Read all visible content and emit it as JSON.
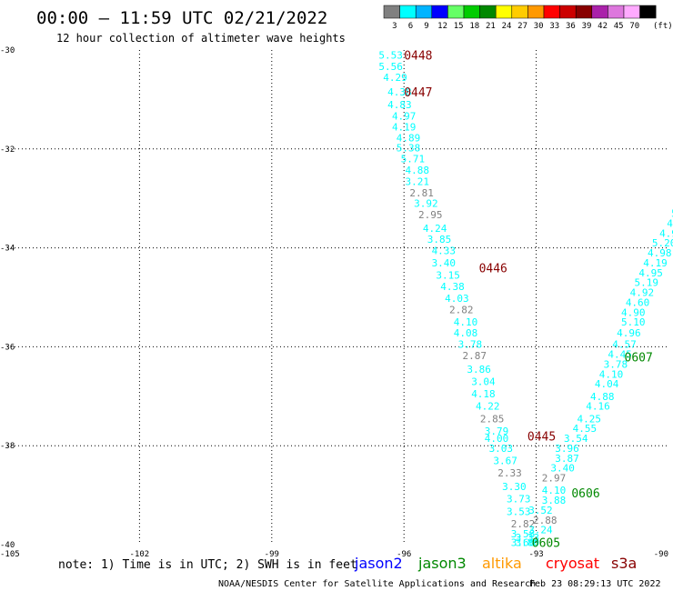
{
  "header": {
    "title": "00:00 – 11:59 UTC 02/21/2022",
    "subtitle": "12 hour collection of altimeter wave heights"
  },
  "legend": {
    "unit": "(ft)",
    "bins": [
      {
        "label": "3",
        "color": "#808080"
      },
      {
        "label": "6",
        "color": "#00ffff"
      },
      {
        "label": "9",
        "color": "#00b4ff"
      },
      {
        "label": "12",
        "color": "#0000ff"
      },
      {
        "label": "15",
        "color": "#66ff66"
      },
      {
        "label": "18",
        "color": "#00cc00"
      },
      {
        "label": "21",
        "color": "#008800"
      },
      {
        "label": "24",
        "color": "#ffff00"
      },
      {
        "label": "27",
        "color": "#ffcc00"
      },
      {
        "label": "30",
        "color": "#ff9900"
      },
      {
        "label": "33",
        "color": "#ff0000"
      },
      {
        "label": "36",
        "color": "#cc0000"
      },
      {
        "label": "39",
        "color": "#880000"
      },
      {
        "label": "42",
        "color": "#aa22aa"
      },
      {
        "label": "45",
        "color": "#dd77dd"
      },
      {
        "label": "70",
        "color": "#ffaaff"
      },
      {
        "label": "",
        "color": "#000000"
      }
    ]
  },
  "footer": {
    "note": "note:  1) Time is in UTC;  2) SWH is in feet",
    "satellites": [
      {
        "name": "jason2",
        "color": "#0000ff"
      },
      {
        "name": "jason3",
        "color": "#008800"
      },
      {
        "name": "altika",
        "color": "#ff9900"
      },
      {
        "name": "cryosat",
        "color": "#ff0000"
      },
      {
        "name": "s3a",
        "color": "#880000"
      }
    ],
    "credit": "NOAA/NESDIS Center for Satellite Applications and Research",
    "timestamp": "Feb 23 08:29:13 UTC 2022"
  },
  "chart_data": {
    "type": "scatter",
    "title": "00:00 – 11:59 UTC 02/21/2022",
    "subtitle": "12 hour collection of altimeter wave heights",
    "xlim": [
      -105,
      -90
    ],
    "ylim": [
      -40,
      -30
    ],
    "x_ticks": [
      {
        "value": -105,
        "label": "-105"
      },
      {
        "value": -102,
        "label": "-102"
      },
      {
        "value": -99,
        "label": "-99"
      },
      {
        "value": -96,
        "label": "-96"
      },
      {
        "value": -93,
        "label": "-93"
      },
      {
        "value": -90,
        "label": "-90"
      }
    ],
    "y_ticks": [
      {
        "value": -30,
        "label": "-30"
      },
      {
        "value": -32,
        "label": "-32"
      },
      {
        "value": -34,
        "label": "-34"
      },
      {
        "value": -36,
        "label": "-36"
      },
      {
        "value": -38,
        "label": "-38"
      },
      {
        "value": -40,
        "label": "-40"
      }
    ],
    "grid": true,
    "series": [
      {
        "name": "s3a",
        "points": [
          [
            -96.3,
            -30.1,
            "5.53",
            "#00ffff"
          ],
          [
            -96.3,
            -30.33,
            "5.56",
            "#00ffff"
          ],
          [
            -96.2,
            -30.55,
            "4.29",
            "#00ffff"
          ],
          [
            -96.1,
            -30.85,
            "4.38",
            "#00ffff"
          ],
          [
            -96.1,
            -31.1,
            "4.83",
            "#00ffff"
          ],
          [
            -96.0,
            -31.33,
            "4.97",
            "#00ffff"
          ],
          [
            -96.0,
            -31.55,
            "4.19",
            "#00ffff"
          ],
          [
            -95.9,
            -31.77,
            "4.89",
            "#00ffff"
          ],
          [
            -95.9,
            -31.98,
            "5.38",
            "#00ffff"
          ],
          [
            -95.8,
            -32.2,
            "5.71",
            "#00ffff"
          ],
          [
            -95.7,
            -32.43,
            "4.88",
            "#00ffff"
          ],
          [
            -95.7,
            -32.66,
            "3.21",
            "#00ffff"
          ],
          [
            -95.6,
            -32.89,
            "2.81",
            "#808080"
          ],
          [
            -95.5,
            -33.1,
            "3.92",
            "#00ffff"
          ],
          [
            -95.4,
            -33.33,
            "2.95",
            "#808080"
          ],
          [
            -95.3,
            -33.6,
            "4.24",
            "#00ffff"
          ],
          [
            -95.2,
            -33.82,
            "3.85",
            "#00ffff"
          ],
          [
            -95.1,
            -34.05,
            "4.33",
            "#00ffff"
          ],
          [
            -95.1,
            -34.3,
            "3.40",
            "#00ffff"
          ],
          [
            -95.0,
            -34.55,
            "3.15",
            "#00ffff"
          ],
          [
            -94.9,
            -34.78,
            "4.38",
            "#00ffff"
          ],
          [
            -94.8,
            -35.02,
            "4.03",
            "#00ffff"
          ],
          [
            -94.7,
            -35.25,
            "2.82",
            "#808080"
          ],
          [
            -94.6,
            -35.5,
            "4.10",
            "#00ffff"
          ],
          [
            -94.6,
            -35.72,
            "4.08",
            "#00ffff"
          ],
          [
            -94.5,
            -35.95,
            "3.78",
            "#00ffff"
          ],
          [
            -94.4,
            -36.18,
            "2.87",
            "#808080"
          ],
          [
            -94.3,
            -36.45,
            "3.86",
            "#00ffff"
          ],
          [
            -94.2,
            -36.7,
            "3.04",
            "#00ffff"
          ],
          [
            -94.2,
            -36.95,
            "4.18",
            "#00ffff"
          ],
          [
            -94.1,
            -37.2,
            "4.22",
            "#00ffff"
          ],
          [
            -94.0,
            -37.45,
            "2.85",
            "#808080"
          ],
          [
            -93.9,
            -37.7,
            "3.79",
            "#00ffff"
          ],
          [
            -93.9,
            -37.85,
            "4.00",
            "#00ffff"
          ],
          [
            -93.8,
            -38.05,
            "3.03",
            "#00ffff"
          ],
          [
            -93.7,
            -38.3,
            "3.67",
            "#00ffff"
          ],
          [
            -93.6,
            -38.55,
            "2.33",
            "#808080"
          ],
          [
            -93.5,
            -38.82,
            "3.30",
            "#00ffff"
          ],
          [
            -93.4,
            -39.07,
            "3.73",
            "#00ffff"
          ],
          [
            -93.4,
            -39.33,
            "3.53",
            "#00ffff"
          ],
          [
            -93.3,
            -39.58,
            "2.82",
            "#808080"
          ],
          [
            -93.3,
            -39.78,
            "3.58",
            "#00ffff"
          ],
          [
            -93.2,
            -39.85,
            "3.33",
            "#00ffff"
          ],
          [
            -93.3,
            -39.95,
            "3.66",
            "#00ffff"
          ],
          [
            -93.2,
            -39.95,
            "3.80",
            "#00ffff"
          ]
        ]
      },
      {
        "name": "s3a",
        "points": [
          [
            -92.9,
            -39.7,
            "3.24",
            "#00ffff"
          ],
          [
            -92.8,
            -39.5,
            "2.88",
            "#808080"
          ],
          [
            -92.9,
            -39.3,
            "3.52",
            "#00ffff"
          ],
          [
            -92.6,
            -39.1,
            "3.88",
            "#00ffff"
          ],
          [
            -92.6,
            -38.9,
            "4.10",
            "#00ffff"
          ],
          [
            -92.6,
            -38.65,
            "2.97",
            "#808080"
          ],
          [
            -92.4,
            -38.45,
            "3.40",
            "#00ffff"
          ],
          [
            -92.3,
            -38.25,
            "3.87",
            "#00ffff"
          ],
          [
            -92.3,
            -38.05,
            "3.96",
            "#00ffff"
          ],
          [
            -92.1,
            -37.85,
            "3.54",
            "#00ffff"
          ],
          [
            -91.9,
            -37.65,
            "4.55",
            "#00ffff"
          ],
          [
            -91.8,
            -37.45,
            "4.25",
            "#00ffff"
          ],
          [
            -91.6,
            -37.2,
            "4.16",
            "#00ffff"
          ],
          [
            -91.5,
            -37.0,
            "4.88",
            "#00ffff"
          ],
          [
            -91.4,
            -36.75,
            "4.04",
            "#00ffff"
          ],
          [
            -91.3,
            -36.55,
            "4.10",
            "#00ffff"
          ],
          [
            -91.2,
            -36.35,
            "3.78",
            "#00ffff"
          ],
          [
            -91.1,
            -36.15,
            "4.45",
            "#00ffff"
          ],
          [
            -91.0,
            -35.95,
            "4.57",
            "#00ffff"
          ],
          [
            -90.9,
            -35.72,
            "4.96",
            "#00ffff"
          ],
          [
            -90.8,
            -35.5,
            "5.10",
            "#00ffff"
          ],
          [
            -90.8,
            -35.3,
            "4.90",
            "#00ffff"
          ],
          [
            -90.7,
            -35.1,
            "4.60",
            "#00ffff"
          ],
          [
            -90.6,
            -34.9,
            "4.92",
            "#00ffff"
          ],
          [
            -90.5,
            -34.7,
            "5.19",
            "#00ffff"
          ],
          [
            -90.4,
            -34.5,
            "4.95",
            "#00ffff"
          ],
          [
            -90.3,
            -34.3,
            "4.19",
            "#00ffff"
          ],
          [
            -90.2,
            -34.1,
            "4.98",
            "#00ffff"
          ],
          [
            -90.1,
            -33.9,
            "5.20",
            "#00ffff"
          ],
          [
            -90.0,
            -33.7,
            "4.9",
            "#00ffff"
          ],
          [
            -89.9,
            -33.5,
            "4.",
            "#00ffff"
          ],
          [
            -89.8,
            -33.3,
            "5.",
            "#00ffff"
          ]
        ]
      }
    ],
    "time_labels": [
      {
        "x": -96.0,
        "y": -30.1,
        "label": "0448",
        "color": "#880000"
      },
      {
        "x": -96.0,
        "y": -30.85,
        "label": "0447",
        "color": "#880000"
      },
      {
        "x": -94.3,
        "y": -34.4,
        "label": "0446",
        "color": "#880000"
      },
      {
        "x": -93.2,
        "y": -37.8,
        "label": "0445",
        "color": "#880000"
      },
      {
        "x": -93.1,
        "y": -39.95,
        "label": "0605",
        "color": "#008800"
      },
      {
        "x": -92.2,
        "y": -38.95,
        "label": "0606",
        "color": "#008800"
      },
      {
        "x": -91.0,
        "y": -36.2,
        "label": "0607",
        "color": "#008800"
      }
    ]
  }
}
